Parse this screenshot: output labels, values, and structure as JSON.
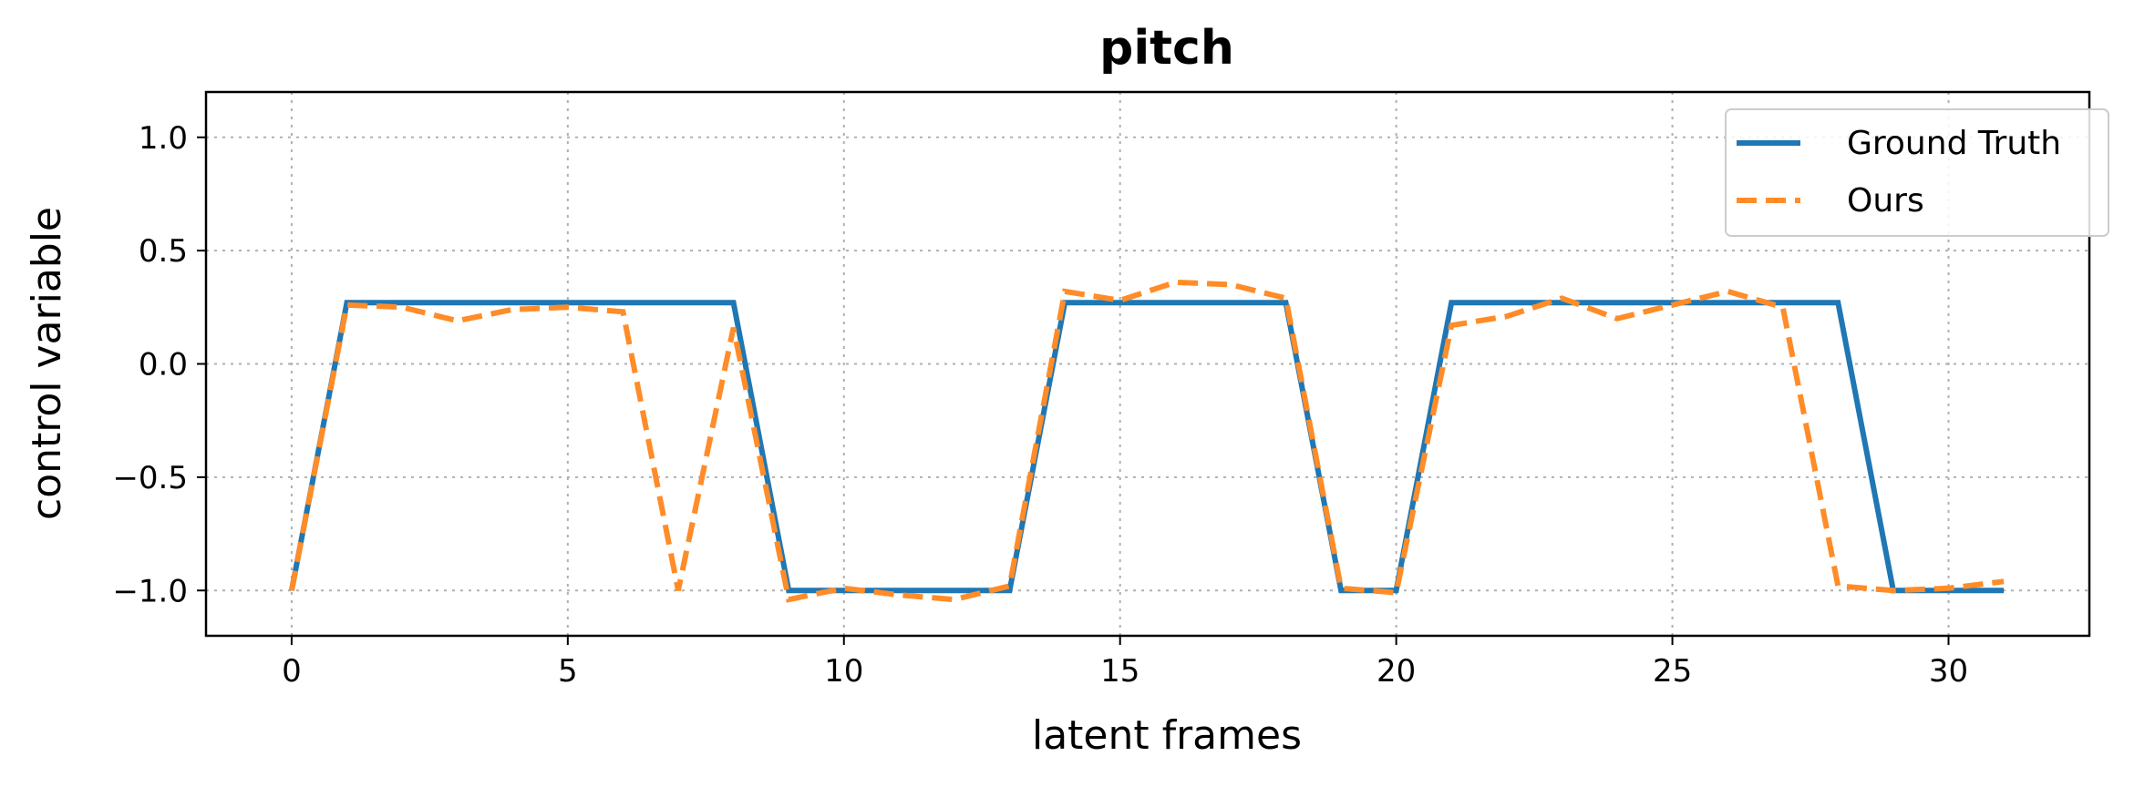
{
  "chart_data": {
    "type": "line",
    "title": "pitch",
    "xlabel": "latent frames",
    "ylabel": "control variable",
    "xlim": [
      -1.55,
      32.55
    ],
    "ylim": [
      -1.2,
      1.2
    ],
    "xticks": [
      0,
      5,
      10,
      15,
      20,
      25,
      30
    ],
    "yticks": [
      1.0,
      0.5,
      0.0,
      -0.5,
      -1.0
    ],
    "xtick_labels": [
      "0",
      "5",
      "10",
      "15",
      "20",
      "25",
      "30"
    ],
    "ytick_labels": [
      "1.0",
      "0.5",
      "0.0",
      "−0.5",
      "−1.0"
    ],
    "grid": true,
    "legend_position": "top-right",
    "x": [
      0,
      1,
      2,
      3,
      4,
      5,
      6,
      7,
      8,
      9,
      10,
      11,
      12,
      13,
      14,
      15,
      16,
      17,
      18,
      19,
      20,
      21,
      22,
      23,
      24,
      25,
      26,
      27,
      28,
      29,
      30,
      31
    ],
    "series": [
      {
        "name": "Ground Truth",
        "color": "#1f77b4",
        "style": "solid",
        "values": [
          -1.0,
          0.27,
          0.27,
          0.27,
          0.27,
          0.27,
          0.27,
          0.27,
          0.27,
          -1.0,
          -1.0,
          -1.0,
          -1.0,
          -1.0,
          0.27,
          0.27,
          0.27,
          0.27,
          0.27,
          -1.0,
          -1.0,
          0.27,
          0.27,
          0.27,
          0.27,
          0.27,
          0.27,
          0.27,
          0.27,
          -1.0,
          -1.0,
          -1.0
        ]
      },
      {
        "name": "Ours",
        "color": "#ff8c28",
        "style": "dashed",
        "values": [
          -1.0,
          0.26,
          0.25,
          0.19,
          0.24,
          0.25,
          0.23,
          -1.0,
          0.16,
          -1.04,
          -0.99,
          -1.02,
          -1.04,
          -0.98,
          0.32,
          0.28,
          0.36,
          0.35,
          0.29,
          -0.99,
          -1.01,
          0.17,
          0.21,
          0.29,
          0.2,
          0.26,
          0.32,
          0.25,
          -0.98,
          -1.0,
          -0.99,
          -0.96
        ]
      }
    ]
  }
}
